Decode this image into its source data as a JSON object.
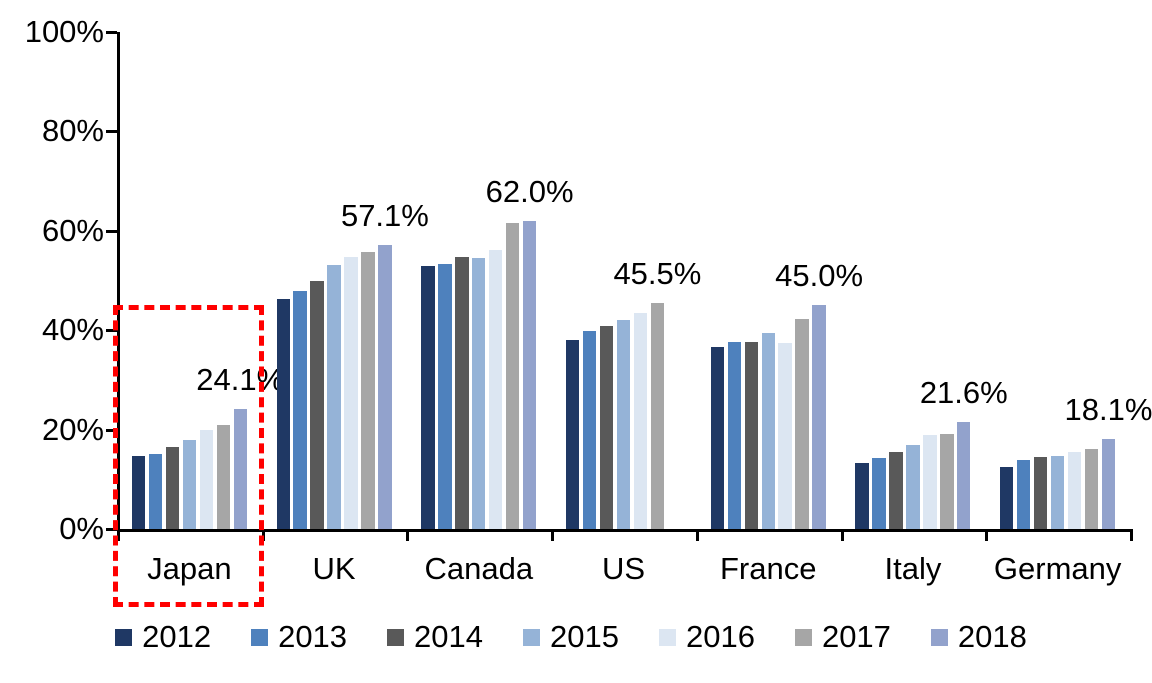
{
  "chart_data": {
    "type": "bar",
    "title": "",
    "xlabel": "",
    "ylabel": "",
    "ylim": [
      0,
      100
    ],
    "grid": false,
    "legend_position": "bottom",
    "y_tick_labels": [
      "0%",
      "20%",
      "40%",
      "60%",
      "80%",
      "100%"
    ],
    "categories": [
      "Japan",
      "UK",
      "Canada",
      "US",
      "France",
      "Italy",
      "Germany"
    ],
    "series": [
      {
        "name": "2012",
        "color": "#1F3864",
        "values": [
          14.6,
          46.3,
          53.0,
          38.1,
          36.6,
          13.3,
          12.5
        ]
      },
      {
        "name": "2013",
        "color": "#4E81BD",
        "values": [
          15.0,
          47.8,
          53.3,
          39.9,
          37.7,
          14.2,
          13.8
        ]
      },
      {
        "name": "2014",
        "color": "#595959",
        "values": [
          16.4,
          50.0,
          54.8,
          40.9,
          37.6,
          15.4,
          14.4
        ]
      },
      {
        "name": "2015",
        "color": "#95B3D7",
        "values": [
          17.9,
          53.2,
          54.6,
          42.0,
          39.4,
          16.9,
          14.6
        ]
      },
      {
        "name": "2016",
        "color": "#DCE6F2",
        "values": [
          19.9,
          54.7,
          56.1,
          43.5,
          37.4,
          19.0,
          15.4
        ]
      },
      {
        "name": "2017",
        "color": "#A6A6A6",
        "values": [
          21.0,
          55.7,
          61.5,
          45.5,
          42.3,
          19.2,
          16.0
        ]
      },
      {
        "name": "2018",
        "color": "#92A2CC",
        "values": [
          24.1,
          57.1,
          62.0,
          null,
          45.0,
          21.6,
          18.1
        ]
      }
    ],
    "data_labels": [
      "24.1%",
      "57.1%",
      "62.0%",
      "45.5%",
      "45.0%",
      "21.6%",
      "18.1%"
    ],
    "annotations": {
      "highlight_category": "Japan",
      "highlight_style": "red dashed rectangle"
    },
    "axis_color": "#000000",
    "highlight_color": "#FF0000"
  }
}
